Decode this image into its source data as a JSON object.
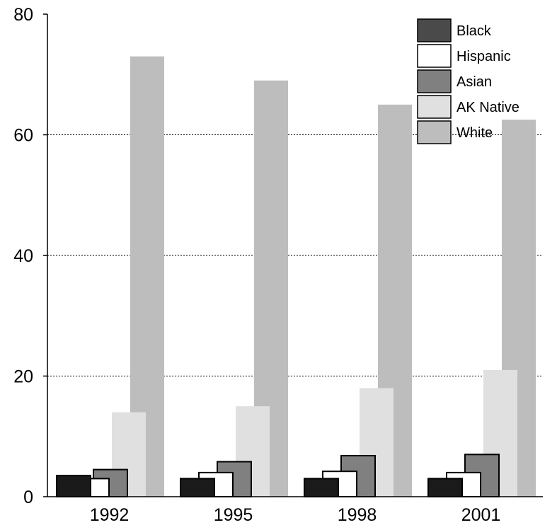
{
  "chart_data": {
    "type": "bar",
    "categories": [
      "1992",
      "1995",
      "1998",
      "2001"
    ],
    "series": [
      {
        "name": "Black",
        "color": "#1a1a1a",
        "legend_color": "#4a4a4a",
        "outlined": true,
        "values": [
          3.5,
          3.0,
          3.0,
          3.0
        ]
      },
      {
        "name": "Hispanic",
        "color": "#ffffff",
        "legend_color": "#ffffff",
        "outlined": true,
        "values": [
          3.0,
          4.0,
          4.2,
          4.0
        ]
      },
      {
        "name": "Asian",
        "color": "#808080",
        "legend_color": "#808080",
        "outlined": true,
        "values": [
          4.5,
          5.8,
          6.8,
          7.0
        ]
      },
      {
        "name": "AK Native",
        "color": "#e0e0e0",
        "legend_color": "#e0e0e0",
        "outlined": false,
        "values": [
          14.0,
          15.0,
          18.0,
          21.0
        ]
      },
      {
        "name": "White",
        "color": "#bdbdbd",
        "legend_color": "#bdbdbd",
        "outlined": false,
        "values": [
          73.0,
          69.0,
          65.0,
          62.5
        ]
      }
    ],
    "ylim": [
      0,
      80
    ],
    "yticks": [
      "0",
      "20",
      "40",
      "60",
      "80"
    ],
    "ytick_values": [
      0,
      20,
      40,
      60,
      80
    ],
    "gridlines": "dotted horizontal at 20, 40, 60",
    "legend_placement": "top-right",
    "title": "",
    "xlabel": "",
    "ylabel": ""
  }
}
